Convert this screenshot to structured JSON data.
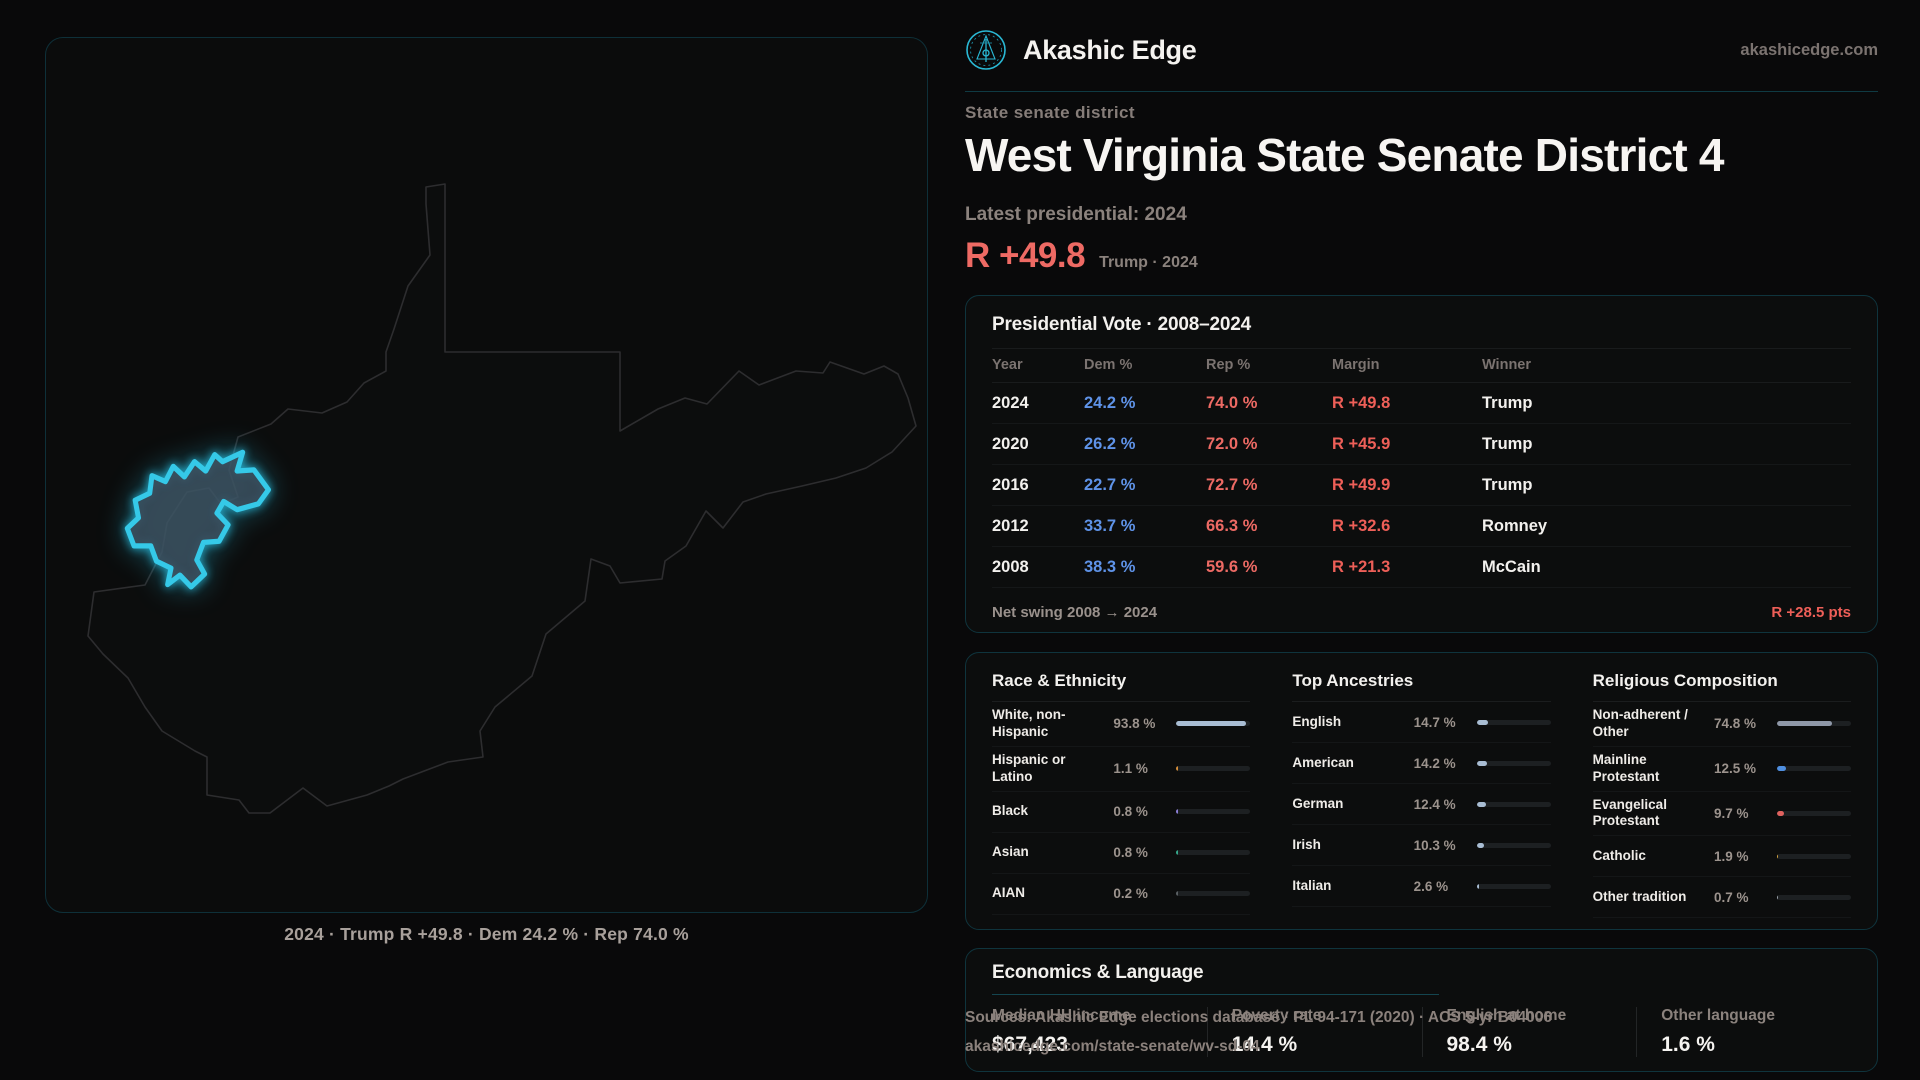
{
  "brand": {
    "name": "Akashic Edge",
    "domain": "akashicedge.com"
  },
  "header": {
    "eyebrow": "State senate district",
    "title": "West Virginia State Senate District 4",
    "latest_label": "Latest presidential: 2024",
    "margin_value": "R +49.8",
    "margin_context": "Trump · 2024"
  },
  "map": {
    "caption": "2024 · Trump R +49.8 · Dem 24.2 % · Rep 74.0 %"
  },
  "vote_table": {
    "title": "Presidential Vote · 2008–2024",
    "columns": [
      "Year",
      "Dem %",
      "Rep %",
      "Margin",
      "Winner"
    ],
    "rows": [
      {
        "year": "2024",
        "dem": "24.2 %",
        "rep": "74.0 %",
        "margin": "R +49.8",
        "winner": "Trump"
      },
      {
        "year": "2020",
        "dem": "26.2 %",
        "rep": "72.0 %",
        "margin": "R +45.9",
        "winner": "Trump"
      },
      {
        "year": "2016",
        "dem": "22.7 %",
        "rep": "72.7 %",
        "margin": "R +49.9",
        "winner": "Trump"
      },
      {
        "year": "2012",
        "dem": "33.7 %",
        "rep": "66.3 %",
        "margin": "R +32.6",
        "winner": "Romney"
      },
      {
        "year": "2008",
        "dem": "38.3 %",
        "rep": "59.6 %",
        "margin": "R +21.3",
        "winner": "McCain"
      }
    ],
    "net_swing_label": "Net swing 2008 → 2024",
    "net_swing_value": "R +28.5 pts"
  },
  "demographics": {
    "race": {
      "title": "Race & Ethnicity",
      "rows": [
        {
          "label": "White, non-Hispanic",
          "value": "93.8 %",
          "pct": 93.8,
          "color": "#a9bdd3"
        },
        {
          "label": "Hispanic or Latino",
          "value": "1.1 %",
          "pct": 1.1,
          "color": "#d78f3a"
        },
        {
          "label": "Black",
          "value": "0.8 %",
          "pct": 0.8,
          "color": "#8d7fd8"
        },
        {
          "label": "Asian",
          "value": "0.8 %",
          "pct": 0.8,
          "color": "#35a98c"
        },
        {
          "label": "AIAN",
          "value": "0.2 %",
          "pct": 0.2,
          "color": "#5a5f63"
        }
      ]
    },
    "ancestries": {
      "title": "Top Ancestries",
      "rows": [
        {
          "label": "English",
          "value": "14.7 %",
          "pct": 14.7,
          "color": "#a9bdd3"
        },
        {
          "label": "American",
          "value": "14.2 %",
          "pct": 14.2,
          "color": "#a9bdd3"
        },
        {
          "label": "German",
          "value": "12.4 %",
          "pct": 12.4,
          "color": "#a9bdd3"
        },
        {
          "label": "Irish",
          "value": "10.3 %",
          "pct": 10.3,
          "color": "#a9bdd3"
        },
        {
          "label": "Italian",
          "value": "2.6 %",
          "pct": 2.6,
          "color": "#a9bdd3"
        }
      ]
    },
    "religion": {
      "title": "Religious Composition",
      "rows": [
        {
          "label": "Non-adherent / Other",
          "value": "74.8 %",
          "pct": 74.8,
          "color": "#8f98a8"
        },
        {
          "label": "Mainline Protestant",
          "value": "12.5 %",
          "pct": 12.5,
          "color": "#4f8fe0"
        },
        {
          "label": "Evangelical Protestant",
          "value": "9.7 %",
          "pct": 9.7,
          "color": "#e0625f"
        },
        {
          "label": "Catholic",
          "value": "1.9 %",
          "pct": 1.9,
          "color": "#d3a23f"
        },
        {
          "label": "Other tradition",
          "value": "0.7 %",
          "pct": 0.7,
          "color": "#9aa1a8"
        }
      ]
    }
  },
  "economics": {
    "title": "Economics & Language",
    "stats": [
      {
        "label": "Median HH income",
        "value": "$67,423"
      },
      {
        "label": "Poverty rate",
        "value": "14.4 %"
      },
      {
        "label": "English at home",
        "value": "98.4 %"
      },
      {
        "label": "Other language",
        "value": "1.6 %"
      }
    ]
  },
  "sources": {
    "line1": "Sources: Akashic Edge elections database · PL 94-171 (2020) · ACS 5-yr B04006",
    "line2": "akashicedge.com/state-senate/wv-sd-04"
  },
  "colors": {
    "accent_teal": "#2ab8d4",
    "district_outline": "#35c9e8",
    "dem_blue": "#5f93e8",
    "rep_red": "#ed6a64",
    "margin_red": "#ee5f58",
    "bar_track": "#1d2022",
    "card_border": "#0f343d",
    "muted_text": "#8b827d"
  }
}
